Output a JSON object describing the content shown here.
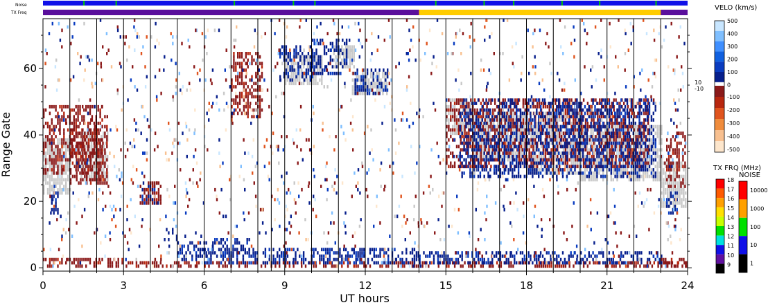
{
  "chart_data": {
    "type": "heatmap",
    "xlabel": "UT hours",
    "ylabel": "Range Gate",
    "xlim": [
      0,
      24
    ],
    "ylim": [
      -1,
      75
    ],
    "x_ticks": [
      "0",
      "3",
      "6",
      "9",
      "12",
      "15",
      "18",
      "21",
      "24"
    ],
    "y_ticks": [
      "0",
      "20",
      "40",
      "60"
    ],
    "scan_boundaries_ut": [
      1.0,
      2.0,
      3.0,
      4.0,
      5.0,
      6.0,
      7.0,
      8.0,
      8.5,
      9.0,
      10.0,
      11.0,
      12.0,
      13.0,
      14.0,
      15.0,
      16.0,
      17.0,
      18.0,
      19.0,
      20.0,
      21.0,
      22.0,
      23.0,
      24.0
    ],
    "top_bars": {
      "noise_label": "Noise",
      "txfreq_label": "TX Freq",
      "noise_bar_color": "#1010e8",
      "noise_spike_ut": [
        1.5,
        2.7,
        7.1,
        9.3,
        10.1,
        14.6,
        16.4,
        17.5,
        19.3,
        20.7,
        22.8
      ],
      "noise_spike_color": "#00c800",
      "txfreq_low_color": "#5a0f9c",
      "txfreq_high_color": "#ffcc00",
      "txfreq_high_ut": [
        14.0,
        23.0
      ]
    },
    "velocity_colorbar": {
      "title": "VELO (km/s)",
      "positive_labels": [
        "500",
        "400",
        "300",
        "200",
        "100",
        "0"
      ],
      "positive_colors": [
        "#c8e6ff",
        "#7fbfff",
        "#3f8fff",
        "#1060e0",
        "#0a3cc0",
        "#071f8c"
      ],
      "zero_labels": [
        "10",
        "-10"
      ],
      "negative_labels": [
        "-100",
        "-200",
        "-300",
        "-400",
        "-500"
      ],
      "negative_colors": [
        "#8b1a1a",
        "#b8270f",
        "#e0541e",
        "#f08c3c",
        "#f8c090",
        "#fde6cc"
      ]
    },
    "txfreq_colorbar": {
      "title": "TX FRQ (MHz)",
      "labels": [
        "18",
        "17",
        "16",
        "15",
        "14",
        "13",
        "12",
        "11",
        "10",
        "9"
      ],
      "colors": [
        "#ff0000",
        "#ff5a00",
        "#ffa000",
        "#ffe000",
        "#c8ff00",
        "#00e000",
        "#00e0e0",
        "#1010e8",
        "#6010a0",
        "#000000"
      ]
    },
    "noise_colorbar": {
      "title": "NOISE",
      "labels": [
        "10000",
        "1000",
        "100",
        "10",
        "1"
      ],
      "colors": [
        "#ff0000",
        "#ffa000",
        "#00e000",
        "#1010e8",
        "#000000"
      ]
    },
    "ground_scatter_color": "#c8c8c8",
    "regions": [
      {
        "kind": "ground",
        "t0": 0.0,
        "t1": 1.0,
        "g0": 22,
        "g1": 38
      },
      {
        "kind": "neg",
        "t0": 0.0,
        "t1": 2.2,
        "g0": 28,
        "g1": 48
      },
      {
        "kind": "neg",
        "t0": 1.0,
        "t1": 2.4,
        "g0": 25,
        "g1": 42
      },
      {
        "kind": "ground",
        "t0": 1.4,
        "t1": 2.4,
        "g0": 26,
        "g1": 40
      },
      {
        "kind": "pos",
        "t0": 0.3,
        "t1": 0.6,
        "g0": 16,
        "g1": 22
      },
      {
        "kind": "neg",
        "t0": 0.0,
        "t1": 3.0,
        "g0": 0,
        "g1": 2
      },
      {
        "kind": "pos",
        "t0": 4.5,
        "t1": 5.0,
        "g0": 8,
        "g1": 11
      },
      {
        "kind": "pos",
        "t0": 5.0,
        "t1": 6.2,
        "g0": 2,
        "g1": 7
      },
      {
        "kind": "pos",
        "t0": 6.3,
        "t1": 7.8,
        "g0": 3,
        "g1": 8
      },
      {
        "kind": "neg",
        "t0": 3.0,
        "t1": 24.0,
        "g0": 0,
        "g1": 1
      },
      {
        "kind": "pos",
        "t0": 6.0,
        "t1": 14.0,
        "g0": 1,
        "g1": 5
      },
      {
        "kind": "pos",
        "t0": 14.0,
        "t1": 23.0,
        "g0": 1,
        "g1": 4
      },
      {
        "kind": "pos",
        "t0": 8.8,
        "t1": 10.0,
        "g0": 56,
        "g1": 66
      },
      {
        "kind": "pos",
        "t0": 10.0,
        "t1": 11.3,
        "g0": 58,
        "g1": 68
      },
      {
        "kind": "ground",
        "t0": 9.0,
        "t1": 10.4,
        "g0": 55,
        "g1": 63
      },
      {
        "kind": "ground",
        "t0": 10.8,
        "t1": 11.6,
        "g0": 60,
        "g1": 66
      },
      {
        "kind": "ground",
        "t0": 11.5,
        "t1": 12.8,
        "g0": 52,
        "g1": 58
      },
      {
        "kind": "pos",
        "t0": 11.6,
        "t1": 12.8,
        "g0": 52,
        "g1": 59
      },
      {
        "kind": "neg",
        "t0": 7.0,
        "t1": 8.2,
        "g0": 45,
        "g1": 64
      },
      {
        "kind": "ground",
        "t0": 15.0,
        "t1": 16.0,
        "g0": 40,
        "g1": 50
      },
      {
        "kind": "ground",
        "t0": 16.0,
        "t1": 18.0,
        "g0": 32,
        "g1": 46
      },
      {
        "kind": "ground",
        "t0": 18.0,
        "t1": 20.0,
        "g0": 28,
        "g1": 46
      },
      {
        "kind": "ground",
        "t0": 20.0,
        "t1": 23.0,
        "g0": 26,
        "g1": 42
      },
      {
        "kind": "neg",
        "t0": 15.0,
        "t1": 22.5,
        "g0": 30,
        "g1": 50
      },
      {
        "kind": "pos",
        "t0": 15.5,
        "t1": 22.8,
        "g0": 27,
        "g1": 50
      },
      {
        "kind": "ground",
        "t0": 23.0,
        "t1": 24.0,
        "g0": 18,
        "g1": 31
      },
      {
        "kind": "pos",
        "t0": 23.2,
        "t1": 23.6,
        "g0": 16,
        "g1": 22
      },
      {
        "kind": "neg",
        "t0": 23.2,
        "t1": 24.0,
        "g0": 24,
        "g1": 40
      },
      {
        "kind": "neg",
        "t0": 23.0,
        "t1": 24.0,
        "g0": 0,
        "g1": 2
      },
      {
        "kind": "pos",
        "t0": 3.6,
        "t1": 4.2,
        "g0": 19,
        "g1": 24
      },
      {
        "kind": "neg",
        "t0": 3.6,
        "t1": 4.4,
        "g0": 19,
        "g1": 25
      }
    ]
  }
}
